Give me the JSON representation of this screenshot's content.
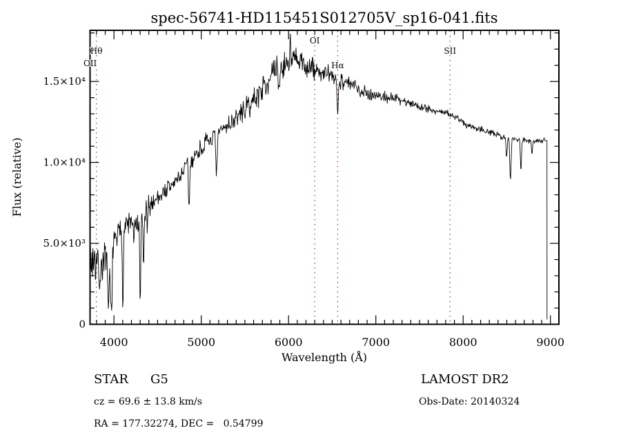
{
  "chart_data": {
    "type": "line",
    "title": "spec-56741-HD115451S012705V_sp16-041.fits",
    "xlabel": "Wavelength (Å)",
    "ylabel": "Flux (relative)",
    "xlim": [
      3726,
      9097
    ],
    "ylim": [
      0,
      18160
    ],
    "grid": false,
    "legend": "none",
    "line_color": "#000000",
    "axis_color": "#000000",
    "marker_line_color": "#993333",
    "x_ticks": {
      "major": [
        4000,
        5000,
        6000,
        7000,
        8000,
        9000
      ],
      "major_labels": [
        "4000",
        "5000",
        "6000",
        "7000",
        "8000",
        "9000"
      ],
      "minor_step": 100
    },
    "y_ticks": {
      "major": [
        0,
        5000,
        10000,
        15000
      ],
      "major_labels": [
        "0",
        "5.0×10³",
        "1.0×10⁴",
        "1.5×10⁴"
      ],
      "minor_step": 1000
    },
    "line_markers": [
      {
        "label": "OII",
        "wavelength": 3727,
        "label_y": 96
      },
      {
        "label": "Hθ",
        "wavelength": 3798,
        "label_y": 78
      },
      {
        "label": "OI",
        "wavelength": 6300,
        "label_y": 63
      },
      {
        "label": "Hα",
        "wavelength": 6563,
        "label_y": 99
      },
      {
        "label": "SII",
        "wavelength": 7850,
        "label_y": 78
      }
    ],
    "series": [
      {
        "name": "spectrum",
        "envelope": [
          [
            3726,
            3400
          ],
          [
            3760,
            4200
          ],
          [
            3800,
            3800
          ],
          [
            3845,
            2900
          ],
          [
            3880,
            4300
          ],
          [
            3915,
            3800
          ],
          [
            3955,
            3200
          ],
          [
            3990,
            4700
          ],
          [
            4030,
            5300
          ],
          [
            4080,
            5800
          ],
          [
            4130,
            6100
          ],
          [
            4180,
            6300
          ],
          [
            4230,
            6200
          ],
          [
            4280,
            6100
          ],
          [
            4330,
            6700
          ],
          [
            4400,
            7300
          ],
          [
            4470,
            7700
          ],
          [
            4550,
            8100
          ],
          [
            4650,
            8500
          ],
          [
            4750,
            9100
          ],
          [
            4820,
            9700
          ],
          [
            4900,
            10200
          ],
          [
            5000,
            10900
          ],
          [
            5080,
            11300
          ],
          [
            5175,
            11700
          ],
          [
            5250,
            12100
          ],
          [
            5350,
            12500
          ],
          [
            5450,
            13000
          ],
          [
            5550,
            13500
          ],
          [
            5650,
            14200
          ],
          [
            5750,
            15000
          ],
          [
            5850,
            15600
          ],
          [
            5950,
            16000
          ],
          [
            6050,
            16300
          ],
          [
            6150,
            16100
          ],
          [
            6250,
            15800
          ],
          [
            6350,
            15600
          ],
          [
            6450,
            15400
          ],
          [
            6560,
            15100
          ],
          [
            6650,
            15000
          ],
          [
            6750,
            14700
          ],
          [
            6850,
            14400
          ],
          [
            6950,
            14200
          ],
          [
            7050,
            14100
          ],
          [
            7150,
            14000
          ],
          [
            7265,
            13900
          ],
          [
            7400,
            13650
          ],
          [
            7550,
            13400
          ],
          [
            7700,
            13150
          ],
          [
            7850,
            13000
          ],
          [
            7950,
            12650
          ],
          [
            8050,
            12300
          ],
          [
            8150,
            12150
          ],
          [
            8250,
            12000
          ],
          [
            8350,
            11750
          ],
          [
            8450,
            11600
          ],
          [
            8550,
            11500
          ],
          [
            8650,
            11450
          ],
          [
            8750,
            11350
          ],
          [
            8850,
            11380
          ],
          [
            8958,
            11350
          ]
        ],
        "noise_sigma": [
          [
            3726,
            1300
          ],
          [
            3950,
            900
          ],
          [
            4100,
            650
          ],
          [
            4300,
            600
          ],
          [
            4600,
            500
          ],
          [
            5000,
            480
          ],
          [
            5400,
            480
          ],
          [
            5700,
            650
          ],
          [
            6000,
            780
          ],
          [
            6300,
            600
          ],
          [
            6563,
            450
          ],
          [
            6800,
            360
          ],
          [
            7100,
            300
          ],
          [
            7400,
            230
          ],
          [
            7800,
            200
          ],
          [
            8200,
            170
          ],
          [
            8600,
            160
          ],
          [
            8958,
            140
          ]
        ],
        "absorption_features": [
          [
            3934,
            2300,
            9
          ],
          [
            3969,
            2900,
            9
          ],
          [
            4102,
            4300,
            6
          ],
          [
            4227,
            1500,
            5
          ],
          [
            4300,
            5200,
            6
          ],
          [
            4340,
            3200,
            6
          ],
          [
            4383,
            1500,
            5
          ],
          [
            4861,
            2800,
            7
          ],
          [
            5175,
            2400,
            9
          ],
          [
            5893,
            1400,
            7
          ],
          [
            6015,
            -1700,
            5
          ],
          [
            6563,
            2000,
            7
          ],
          [
            8498,
            1300,
            7
          ],
          [
            8542,
            2600,
            7
          ],
          [
            8662,
            1900,
            7
          ],
          [
            8790,
            900,
            6
          ]
        ],
        "sample_step": 5.5,
        "noise_seed": 7,
        "edge_drop": [
          8961,
          300
        ],
        "clip": [
          150,
          18080
        ]
      }
    ]
  },
  "annotations": {
    "object_type": "STAR",
    "subclass": "G5",
    "cz_line": "cz = 69.6 ± 13.8 km/s",
    "radec_line": "RA = 177.32274, DEC =   0.54799",
    "survey": "LAMOST DR2",
    "obs_date_line": "Obs-Date: 20140324"
  }
}
